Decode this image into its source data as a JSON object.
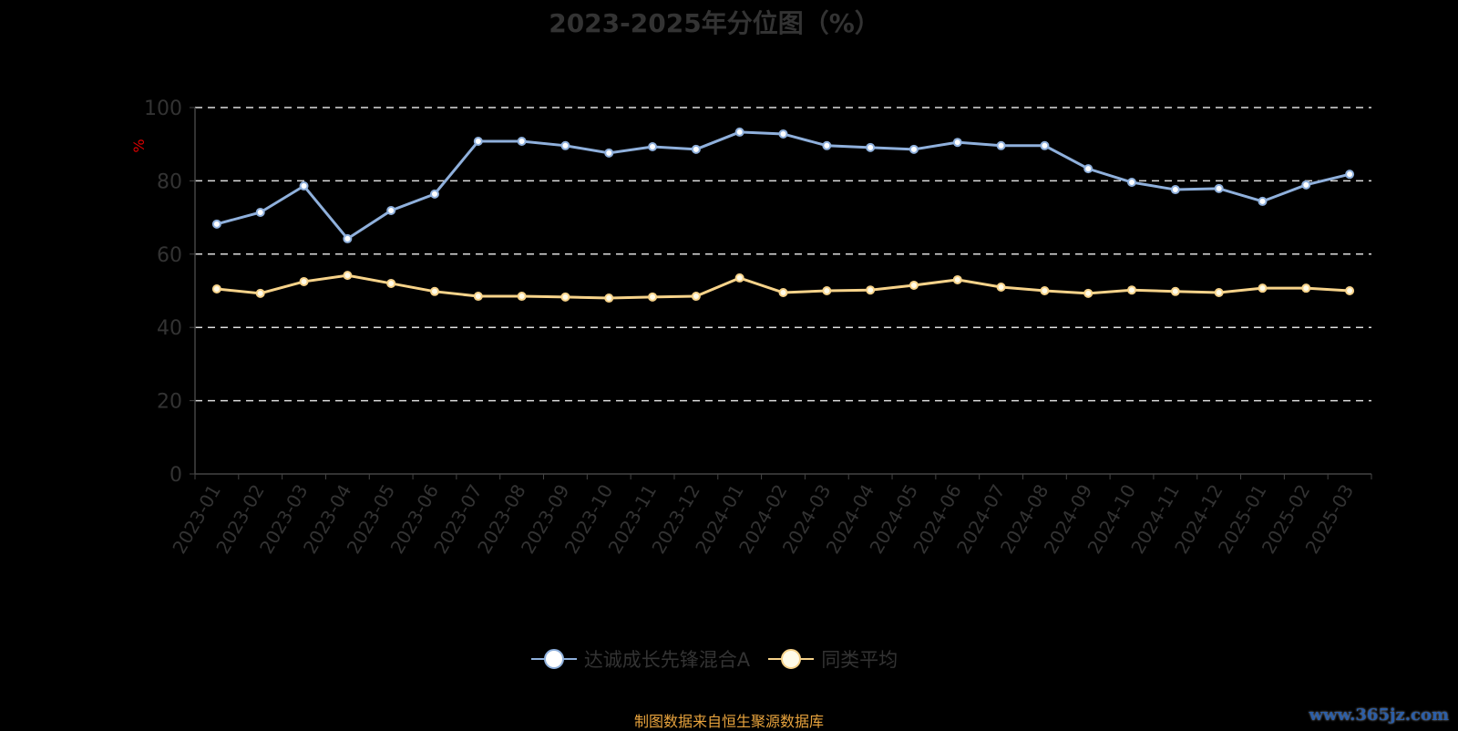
{
  "chart_data": {
    "type": "line",
    "title": "2023-2025年分位图（%）",
    "ylabel": "%",
    "ylim": [
      0,
      100
    ],
    "yticks": [
      0,
      20,
      40,
      60,
      80,
      100
    ],
    "grid": true,
    "legend_position": "bottom",
    "categories": [
      "2023-01",
      "2023-02",
      "2023-03",
      "2023-04",
      "2023-05",
      "2023-06",
      "2023-07",
      "2023-08",
      "2023-09",
      "2023-10",
      "2023-11",
      "2023-12",
      "2024-01",
      "2024-02",
      "2024-03",
      "2024-04",
      "2024-05",
      "2024-06",
      "2024-07",
      "2024-08",
      "2024-09",
      "2024-10",
      "2024-11",
      "2024-12",
      "2025-01",
      "2025-02",
      "2025-03"
    ],
    "series": [
      {
        "name": "达诚成长先锋混合A",
        "color": "#8fb0dc",
        "values": [
          68.2,
          71.4,
          78.6,
          64.2,
          71.9,
          76.4,
          90.8,
          90.8,
          89.6,
          87.6,
          89.3,
          88.6,
          93.3,
          92.8,
          89.6,
          89.1,
          88.6,
          90.5,
          89.6,
          89.6,
          83.3,
          79.6,
          77.6,
          77.9,
          74.4,
          78.9,
          81.8
        ]
      },
      {
        "name": "同类平均",
        "color": "#f7d38a",
        "values": [
          50.5,
          49.3,
          52.5,
          54.2,
          52.0,
          49.8,
          48.5,
          48.5,
          48.3,
          48.0,
          48.3,
          48.5,
          53.5,
          49.5,
          50.0,
          50.2,
          51.5,
          53.0,
          51.0,
          50.0,
          49.3,
          50.2,
          49.8,
          49.5,
          50.7,
          50.7,
          50.0
        ]
      }
    ]
  },
  "source": "制图数据来自恒生聚源数据库",
  "watermark": "www.365jz.com"
}
